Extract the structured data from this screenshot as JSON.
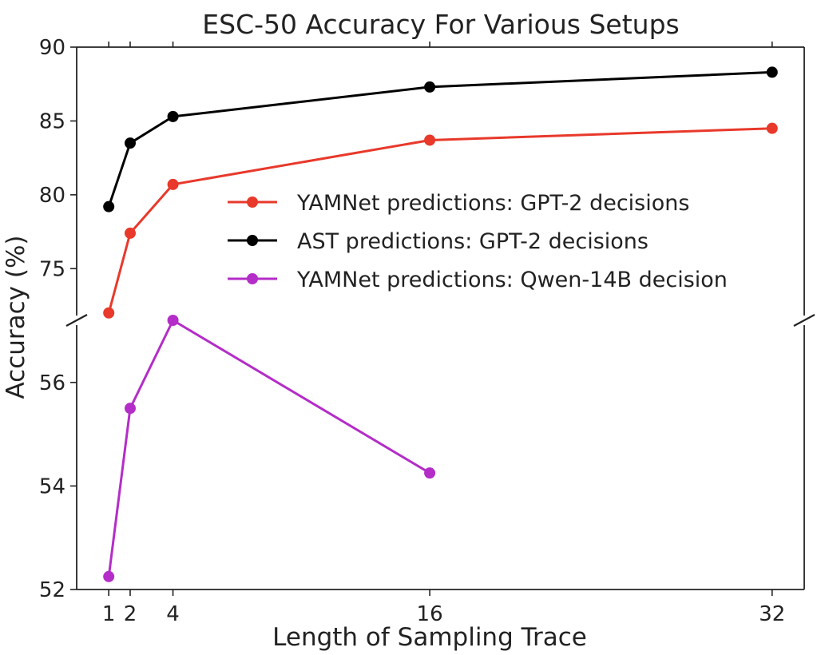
{
  "chart_data": {
    "type": "line",
    "title": "ESC-50 Accuracy For Various Setups",
    "xlabel": "Length of Sampling Trace",
    "ylabel": "Accuracy (%)",
    "x": [
      1,
      2,
      4,
      16,
      32
    ],
    "xticks": [
      "1",
      "2",
      "4",
      "16",
      "32"
    ],
    "xlim": [
      -0.5,
      33.5
    ],
    "broken_y_axis": true,
    "upper_panel": {
      "ylim": [
        71.5,
        90
      ],
      "yticks": [
        75,
        80,
        85,
        90
      ]
    },
    "lower_panel": {
      "ylim": [
        52,
        57.2
      ],
      "yticks": [
        52,
        54,
        56
      ]
    },
    "legend_position": "center-right",
    "series": [
      {
        "name": "YAMNet predictions: GPT-2 decisions",
        "color": "#e8392b",
        "panel": "upper",
        "x": [
          1,
          2,
          4,
          16,
          32
        ],
        "values": [
          72.0,
          77.4,
          80.7,
          83.7,
          84.5
        ]
      },
      {
        "name": "AST predictions: GPT-2 decisions",
        "color": "#000000",
        "panel": "upper",
        "x": [
          1,
          2,
          4,
          16,
          32
        ],
        "values": [
          79.2,
          83.5,
          85.3,
          87.3,
          88.3
        ]
      },
      {
        "name": "YAMNet predictions: Qwen-14B decision",
        "color": "#b42dc8",
        "panel": "lower",
        "x": [
          1,
          2,
          4,
          16
        ],
        "values": [
          52.25,
          55.5,
          57.2,
          54.25
        ]
      }
    ]
  }
}
